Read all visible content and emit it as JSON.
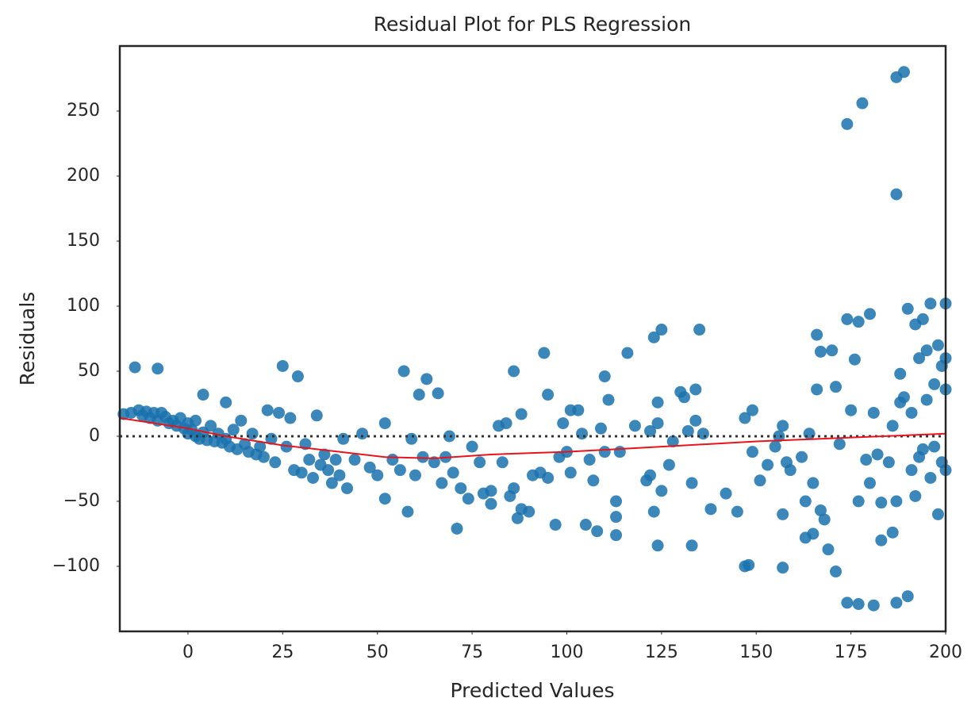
{
  "chart_data": {
    "type": "scatter",
    "title": "Residual Plot for PLS Regression",
    "x_label": "Predicted Values",
    "y_label": "Residuals",
    "xlim": [
      -18,
      200
    ],
    "ylim": [
      -150,
      300
    ],
    "xticks": [
      0,
      25,
      50,
      75,
      100,
      125,
      150,
      175,
      200
    ],
    "yticks": [
      {
        "value": -100,
        "label": "−100"
      },
      {
        "value": -50,
        "label": "−50"
      },
      0,
      50,
      100,
      150,
      200,
      250
    ],
    "reference_line": 0,
    "points": {
      "color": "#1a72ad",
      "x": [
        -17,
        -15,
        -14,
        -13,
        -12,
        -11,
        -10,
        -9,
        -8,
        -8,
        -7,
        -6,
        -5,
        -4,
        -3,
        -2,
        -1,
        0,
        0,
        1,
        2,
        2,
        3,
        4,
        4,
        5,
        6,
        7,
        8,
        9,
        10,
        10,
        11,
        12,
        13,
        14,
        15,
        16,
        17,
        18,
        19,
        20,
        21,
        22,
        23,
        24,
        25,
        26,
        27,
        28,
        29,
        30,
        31,
        32,
        33,
        34,
        35,
        36,
        37,
        38,
        39,
        40,
        41,
        42,
        44,
        46,
        48,
        50,
        52,
        52,
        54,
        56,
        57,
        58,
        59,
        60,
        61,
        62,
        63,
        65,
        66,
        67,
        68,
        69,
        70,
        71,
        72,
        74,
        75,
        77,
        78,
        80,
        80,
        82,
        83,
        84,
        85,
        86,
        86,
        87,
        88,
        88,
        90,
        91,
        93,
        94,
        95,
        95,
        97,
        98,
        99,
        100,
        101,
        101,
        103,
        104,
        105,
        106,
        107,
        108,
        109,
        110,
        110,
        111,
        113,
        113,
        113,
        114,
        116,
        118,
        121,
        122,
        122,
        123,
        123,
        124,
        124,
        124,
        125,
        125,
        127,
        128,
        130,
        131,
        132,
        133,
        133,
        134,
        134,
        135,
        136,
        138,
        142,
        145,
        147,
        147,
        148,
        149,
        149,
        151,
        153,
        155,
        156,
        157,
        157,
        157,
        158,
        159,
        162,
        163,
        163,
        164,
        165,
        165,
        166,
        166,
        167,
        167,
        168,
        169,
        170,
        171,
        171,
        172,
        174,
        174,
        174,
        175,
        176,
        177,
        177,
        177,
        178,
        179,
        180,
        180,
        181,
        181,
        182,
        183,
        183,
        185,
        186,
        186,
        187,
        187,
        187,
        187,
        188,
        188,
        189,
        189,
        190,
        190,
        191,
        191,
        192,
        192,
        193,
        193,
        194,
        194,
        195,
        195,
        196,
        196,
        197,
        197,
        198,
        198,
        199,
        199,
        200,
        200,
        200,
        200
      ],
      "values": [
        17,
        18,
        53,
        20,
        16,
        19,
        14,
        18,
        52,
        12,
        18,
        15,
        10,
        12,
        8,
        14,
        6,
        10,
        2,
        5,
        0,
        12,
        -2,
        32,
        3,
        -3,
        8,
        -4,
        2,
        -5,
        26,
        -2,
        -8,
        5,
        -10,
        12,
        -6,
        -12,
        2,
        -14,
        -8,
        -16,
        20,
        -2,
        -20,
        18,
        54,
        -8,
        14,
        -26,
        46,
        -28,
        -6,
        -18,
        -32,
        16,
        -22,
        -14,
        -26,
        -36,
        -18,
        -30,
        -2,
        -40,
        -18,
        2,
        -24,
        -30,
        -48,
        10,
        -18,
        -26,
        50,
        -58,
        -2,
        -30,
        32,
        -16,
        44,
        -20,
        33,
        -36,
        -16,
        0,
        -28,
        -71,
        -40,
        -48,
        -8,
        -20,
        -44,
        -52,
        -42,
        8,
        -20,
        10,
        -46,
        50,
        -40,
        -63,
        -56,
        17,
        -58,
        -30,
        -28,
        64,
        32,
        -32,
        -68,
        -16,
        10,
        -12,
        20,
        -28,
        20,
        2,
        -68,
        -18,
        -34,
        -73,
        6,
        -12,
        46,
        28,
        -76,
        -50,
        -62,
        -12,
        64,
        8,
        -34,
        4,
        -30,
        -58,
        76,
        10,
        -84,
        26,
        -42,
        82,
        -22,
        -4,
        34,
        30,
        4,
        -84,
        -36,
        36,
        12,
        82,
        2,
        -56,
        -44,
        -58,
        -100,
        14,
        -99,
        20,
        -12,
        -34,
        -22,
        -8,
        0,
        8,
        -60,
        -101,
        -20,
        -26,
        -16,
        -78,
        -50,
        2,
        -36,
        -75,
        78,
        36,
        65,
        -57,
        -64,
        -87,
        66,
        -104,
        38,
        -6,
        240,
        90,
        -128,
        20,
        59,
        -50,
        88,
        -129,
        256,
        -18,
        -36,
        94,
        18,
        -130,
        -14,
        -80,
        -51,
        -20,
        -74,
        8,
        276,
        186,
        -128,
        -50,
        48,
        26,
        280,
        30,
        -123,
        98,
        -26,
        18,
        86,
        -46,
        60,
        -16,
        90,
        -10,
        66,
        28,
        102,
        -32,
        40,
        -8,
        70,
        -60,
        54,
        -20,
        102,
        -26,
        36,
        60
      ]
    },
    "fit_line": {
      "color": "#e8141b",
      "x": [
        -18,
        0,
        10,
        25,
        40,
        52,
        65,
        80,
        100,
        125,
        150,
        175,
        200
      ],
      "values": [
        14,
        6,
        0,
        -7,
        -12,
        -16,
        -17,
        -14,
        -12,
        -8,
        -4,
        -1,
        2
      ]
    }
  }
}
